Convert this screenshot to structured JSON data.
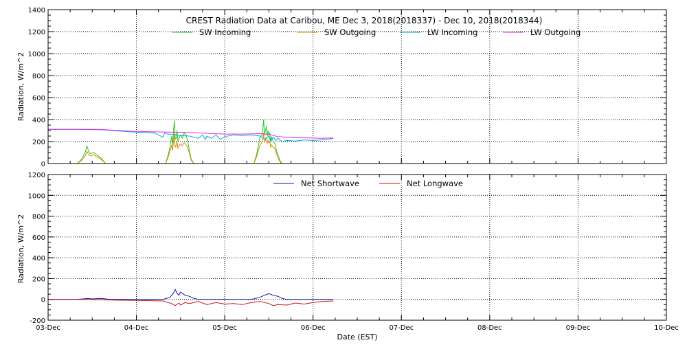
{
  "chart_data": [
    {
      "type": "line",
      "title": "CREST Radiation Data at Caribou, ME   Dec  3, 2018(2018337) - Dec 10, 2018(2018344)",
      "ylabel": "Radiation, W/m^2",
      "xlabel": "",
      "ylim": [
        0,
        1400
      ],
      "yticks": [
        "0",
        "200",
        "400",
        "600",
        "800",
        "1000",
        "1200",
        "1400"
      ],
      "xlim": [
        0,
        7
      ],
      "grid": true,
      "legend_position": "top",
      "series": [
        {
          "name": "SW Incoming",
          "color": "#22cc22",
          "x": [
            0.33,
            0.38,
            0.42,
            0.44,
            0.46,
            0.48,
            0.52,
            0.55,
            0.6,
            0.65,
            1.33,
            1.36,
            1.38,
            1.4,
            1.41,
            1.42,
            1.43,
            1.44,
            1.45,
            1.46,
            1.47,
            1.48,
            1.5,
            1.52,
            1.54,
            1.56,
            1.58,
            1.6,
            1.62,
            1.65,
            2.33,
            2.36,
            2.38,
            2.4,
            2.42,
            2.43,
            2.44,
            2.45,
            2.46,
            2.47,
            2.48,
            2.49,
            2.5,
            2.51,
            2.52,
            2.53,
            2.55,
            2.57,
            2.59,
            2.61,
            2.63,
            2.65
          ],
          "values": [
            0,
            40,
            100,
            160,
            110,
            90,
            100,
            80,
            50,
            0,
            0,
            80,
            150,
            250,
            170,
            310,
            390,
            220,
            230,
            300,
            200,
            230,
            260,
            230,
            280,
            260,
            210,
            120,
            40,
            0,
            0,
            80,
            160,
            240,
            260,
            300,
            400,
            260,
            300,
            340,
            250,
            300,
            260,
            280,
            200,
            240,
            200,
            180,
            100,
            60,
            20,
            0
          ]
        },
        {
          "name": "SW Outgoing",
          "color": "#dd8800",
          "x": [
            0.33,
            0.38,
            0.42,
            0.44,
            0.46,
            0.48,
            0.52,
            0.55,
            0.6,
            0.65,
            1.33,
            1.36,
            1.38,
            1.4,
            1.41,
            1.42,
            1.43,
            1.44,
            1.45,
            1.46,
            1.47,
            1.48,
            1.5,
            1.52,
            1.54,
            1.56,
            1.58,
            1.6,
            1.62,
            1.65,
            2.33,
            2.36,
            2.38,
            2.4,
            2.42,
            2.43,
            2.44,
            2.45,
            2.46,
            2.47,
            2.48,
            2.49,
            2.5,
            2.51,
            2.52,
            2.53,
            2.55,
            2.57,
            2.59,
            2.61,
            2.63,
            2.65
          ],
          "values": [
            0,
            30,
            70,
            110,
            80,
            70,
            80,
            60,
            40,
            0,
            0,
            60,
            110,
            170,
            120,
            210,
            270,
            150,
            160,
            200,
            140,
            160,
            180,
            160,
            190,
            170,
            150,
            90,
            30,
            0,
            0,
            60,
            120,
            170,
            190,
            210,
            280,
            190,
            210,
            240,
            180,
            210,
            190,
            200,
            150,
            170,
            150,
            130,
            80,
            40,
            10,
            0
          ]
        },
        {
          "name": "LW Incoming",
          "color": "#00aadd",
          "x": [
            0,
            0.2,
            0.4,
            0.6,
            0.8,
            1.0,
            1.2,
            1.3,
            1.32,
            1.34,
            1.4,
            1.5,
            1.6,
            1.7,
            1.75,
            1.78,
            1.8,
            1.85,
            1.9,
            1.95,
            2.0,
            2.1,
            2.2,
            2.3,
            2.4,
            2.45,
            2.5,
            2.52,
            2.55,
            2.58,
            2.6,
            2.65,
            2.7,
            2.8,
            2.9,
            3.0,
            3.1,
            3.2,
            3.23
          ],
          "values": [
            310,
            310,
            310,
            308,
            295,
            285,
            280,
            240,
            280,
            270,
            265,
            255,
            250,
            230,
            260,
            220,
            250,
            230,
            260,
            220,
            245,
            260,
            255,
            260,
            250,
            220,
            250,
            200,
            240,
            210,
            230,
            200,
            210,
            205,
            215,
            210,
            215,
            225,
            230
          ]
        },
        {
          "name": "LW Outgoing",
          "color": "#ee22ee",
          "x": [
            0,
            0.2,
            0.4,
            0.6,
            0.8,
            1.0,
            1.2,
            1.4,
            1.6,
            1.8,
            2.0,
            2.2,
            2.4,
            2.5,
            2.6,
            2.7,
            2.8,
            3.0,
            3.1,
            3.2,
            3.23
          ],
          "values": [
            312,
            312,
            312,
            310,
            300,
            292,
            288,
            285,
            282,
            275,
            268,
            268,
            272,
            265,
            245,
            240,
            235,
            232,
            230,
            232,
            232
          ]
        }
      ]
    },
    {
      "type": "line",
      "title": "",
      "ylabel": "Radiation, W/m^2",
      "xlabel": "Date (EST)",
      "ylim": [
        -200,
        1200
      ],
      "yticks": [
        "-200",
        "0",
        "200",
        "400",
        "600",
        "800",
        "1000",
        "1200"
      ],
      "xlim": [
        0,
        7
      ],
      "categories": [
        "03-Dec",
        "04-Dec",
        "05-Dec",
        "06-Dec",
        "07-Dec",
        "08-Dec",
        "09-Dec",
        "10-Dec"
      ],
      "grid": true,
      "legend_position": "top",
      "series": [
        {
          "name": "Net Shortwave",
          "color": "#1111aa",
          "x": [
            0,
            0.3,
            0.4,
            0.45,
            0.5,
            0.6,
            0.7,
            1.0,
            1.3,
            1.38,
            1.42,
            1.44,
            1.46,
            1.48,
            1.5,
            1.55,
            1.6,
            1.65,
            1.7,
            2.0,
            2.3,
            2.4,
            2.45,
            2.5,
            2.55,
            2.6,
            2.65,
            2.7,
            3.0,
            3.23
          ],
          "values": [
            0,
            0,
            5,
            10,
            5,
            10,
            0,
            0,
            0,
            20,
            60,
            95,
            60,
            40,
            70,
            40,
            30,
            10,
            0,
            0,
            0,
            20,
            40,
            55,
            40,
            30,
            10,
            0,
            0,
            0
          ]
        },
        {
          "name": "Net Longwave",
          "color": "#cc1111",
          "x": [
            0,
            0.4,
            0.8,
            1.0,
            1.3,
            1.4,
            1.44,
            1.48,
            1.5,
            1.55,
            1.6,
            1.7,
            1.8,
            1.9,
            2.0,
            2.1,
            2.2,
            2.3,
            2.4,
            2.5,
            2.55,
            2.6,
            2.7,
            2.8,
            2.9,
            3.0,
            3.1,
            3.23
          ],
          "values": [
            0,
            0,
            -8,
            -10,
            -15,
            -40,
            -60,
            -35,
            -55,
            -30,
            -40,
            -20,
            -50,
            -30,
            -45,
            -40,
            -50,
            -30,
            -20,
            -40,
            -60,
            -50,
            -55,
            -35,
            -45,
            -30,
            -20,
            -15
          ]
        }
      ]
    }
  ]
}
